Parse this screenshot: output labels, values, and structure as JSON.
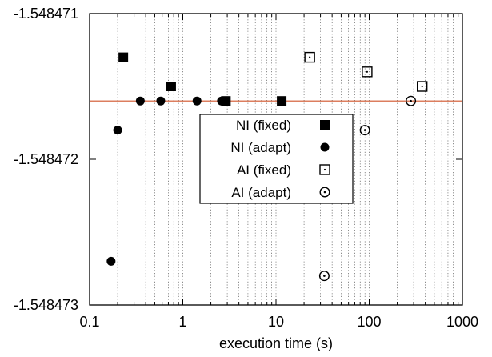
{
  "chart_data": {
    "type": "scatter",
    "title": "",
    "xlabel": "execution time (s)",
    "ylabel": "",
    "x_scale": "log",
    "xlim": [
      0.1,
      1000
    ],
    "ylim": [
      -1.548473,
      -1.548471
    ],
    "x_ticks": [
      "0.1",
      "1",
      "10",
      "100",
      "1000"
    ],
    "y_ticks": [
      "-1.548473",
      "-1.548472",
      "-1.548471"
    ],
    "grid": "x-only (major and minor, dotted)",
    "legend_position": "center",
    "reference_line": {
      "y": -1.5484716,
      "color": "#d0542a"
    },
    "series": [
      {
        "name": "NI (fixed)",
        "marker": "filled-square",
        "points": [
          [
            0.23,
            -1.5484713
          ],
          [
            0.75,
            -1.5484715
          ],
          [
            2.9,
            -1.5484716
          ],
          [
            11.5,
            -1.5484716
          ]
        ]
      },
      {
        "name": "NI (adapt)",
        "marker": "filled-circle",
        "points": [
          [
            0.17,
            -1.5484727
          ],
          [
            0.2,
            -1.5484718
          ],
          [
            0.35,
            -1.5484716
          ],
          [
            0.58,
            -1.5484716
          ],
          [
            1.42,
            -1.5484716
          ],
          [
            2.6,
            -1.5484716
          ]
        ]
      },
      {
        "name": "AI (fixed)",
        "marker": "open-square",
        "points": [
          [
            23,
            -1.5484713
          ],
          [
            95,
            -1.5484714
          ],
          [
            370,
            -1.5484715
          ]
        ]
      },
      {
        "name": "AI (adapt)",
        "marker": "open-circle-dot",
        "points": [
          [
            33,
            -1.5484728
          ],
          [
            90,
            -1.5484718
          ],
          [
            280,
            -1.5484716
          ]
        ]
      }
    ]
  }
}
